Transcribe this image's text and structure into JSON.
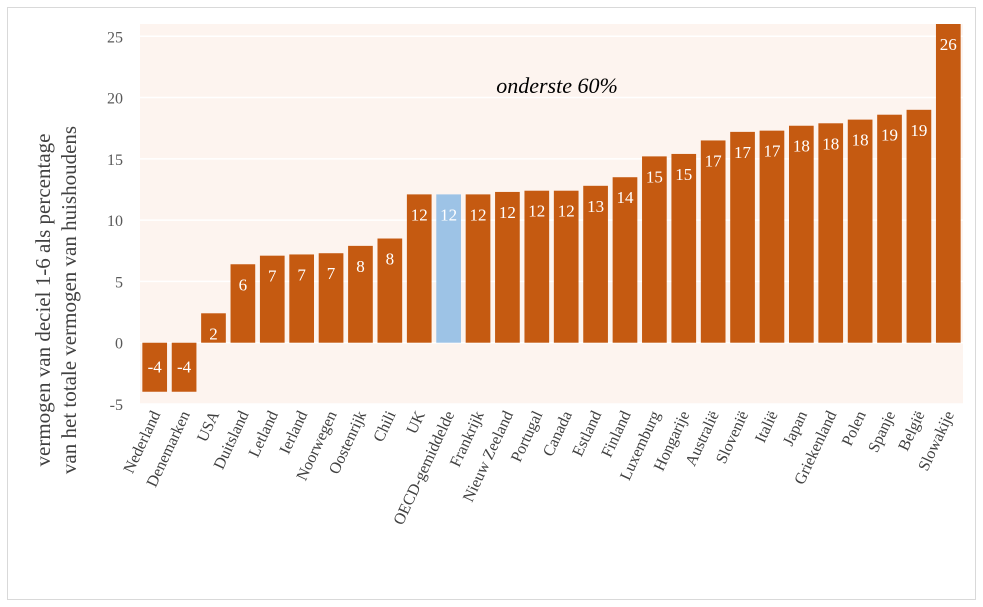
{
  "chart_data": {
    "type": "bar",
    "categories": [
      "Nederland",
      "Denemarken",
      "USA",
      "Duitsland",
      "Letland",
      "Ierland",
      "Noorwegen",
      "Oostenrijk",
      "Chili",
      "UK",
      "OECD-gemiddelde",
      "Frankrijk",
      "Nieuw Zeeland",
      "Portugal",
      "Canada",
      "Estland",
      "Finland",
      "Luxemburg",
      "Hongarije",
      "Australië",
      "Slovenië",
      "Italië",
      "Japan",
      "Griekenland",
      "Polen",
      "Spanje",
      "België",
      "Slowakije"
    ],
    "values": [
      -4.0,
      -4.0,
      2.4,
      6.4,
      7.1,
      7.2,
      7.3,
      7.9,
      8.5,
      12.1,
      12.1,
      12.1,
      12.3,
      12.4,
      12.4,
      12.8,
      13.5,
      15.2,
      15.4,
      16.5,
      17.2,
      17.3,
      17.7,
      17.9,
      18.2,
      18.6,
      19.0,
      26.0
    ],
    "data_labels": [
      "-4",
      "-4",
      "2",
      "6",
      "7",
      "7",
      "7",
      "8",
      "8",
      "12",
      "12",
      "12",
      "12",
      "12",
      "12",
      "13",
      "14",
      "15",
      "15",
      "17",
      "17",
      "17",
      "18",
      "18",
      "18",
      "19",
      "19",
      "26"
    ],
    "highlight_category": "OECD-gemiddelde",
    "ylabel_line1": "vermogen van deciel 1-6 als percentage",
    "ylabel_line2": "van het totale vermogen van huishoudens",
    "annotation": "onderste 60%",
    "ylim": [
      -5,
      26
    ],
    "yticks": [
      -5,
      0,
      5,
      10,
      15,
      20,
      25
    ],
    "grid": true,
    "colors": {
      "bar": "#c55a11",
      "highlight": "#9dc3e6",
      "plot_bg": "#fdf4ef",
      "grid": "#ffffff"
    }
  }
}
